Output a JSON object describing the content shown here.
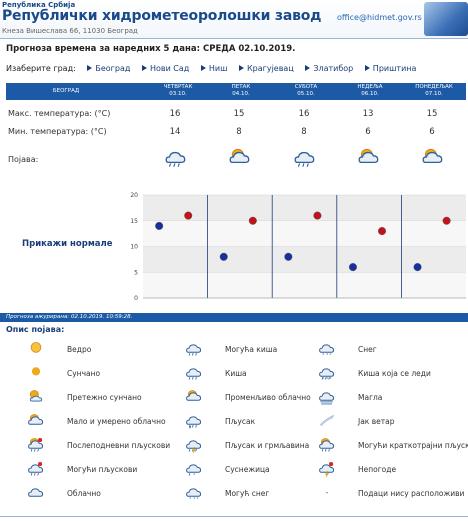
{
  "header": {
    "republic": "Република Србија",
    "title": "Републички хидрометеоролошки завод",
    "address": "Кнеза Вишеслава 66, 11030 Београд",
    "email": "office@hidmet.gov.rs"
  },
  "forecast_title": "Прогноза времена за наредних 5 дана: СРЕДА  02.10.2019.",
  "city_select": {
    "label": "Изаберите град:",
    "cities": [
      "Београд",
      "Нови Сад",
      "Ниш",
      "Крагујевац",
      "Златибор",
      "Приштина"
    ]
  },
  "table": {
    "city_header": "БЕОГРАД",
    "days": [
      {
        "name": "ЧЕТВРТАК",
        "date": "03.10.",
        "max": "16",
        "min": "14",
        "icon": "rain-icon"
      },
      {
        "name": "ПЕТАК",
        "date": "04.10.",
        "max": "15",
        "min": "8",
        "icon": "partly-cloudy-icon"
      },
      {
        "name": "СУБОТА",
        "date": "05.10.",
        "max": "16",
        "min": "8",
        "icon": "rain-icon"
      },
      {
        "name": "НЕДЕЉА",
        "date": "06.10.",
        "max": "13",
        "min": "6",
        "icon": "partly-cloudy-icon"
      },
      {
        "name": "ПОНЕДЕЉАК",
        "date": "07.10.",
        "max": "15",
        "min": "6",
        "icon": "partly-cloudy-icon"
      }
    ],
    "max_label": "Макс. температура: (°C)",
    "min_label": "Мин. температура: (°C)",
    "phen_label": "Појава:"
  },
  "chart_data": {
    "type": "scatter",
    "x": [
      "03.10.",
      "04.10.",
      "05.10.",
      "06.10.",
      "07.10."
    ],
    "series": [
      {
        "values": [
          16,
          15,
          16,
          13,
          15
        ],
        "color": "#c0141c"
      },
      {
        "values": [
          14,
          8,
          8,
          6,
          6
        ],
        "color": "#1a2f9e"
      }
    ],
    "ylim": [
      0,
      20
    ],
    "yticks": [
      "0",
      "5",
      "10",
      "15",
      "20"
    ],
    "grid": true
  },
  "show_normals": "Прикажи нормале",
  "updated": "Прогноза ажурирана:  02.10.2019. 10:59:28.",
  "description": {
    "title": "Опис појава:",
    "items": [
      {
        "label": "Ведро",
        "icon": "clear-sun-icon"
      },
      {
        "label": "Сунчано",
        "icon": "sunny-icon"
      },
      {
        "label": "Претежно сунчано",
        "icon": "mostly-sunny-icon"
      },
      {
        "label": "Мало и умерено облачно",
        "icon": "partly-cloudy-icon"
      },
      {
        "label": "Послеподневни пљускови",
        "icon": "afternoon-showers-icon"
      },
      {
        "label": "Могући пљускови",
        "icon": "possible-showers-icon"
      },
      {
        "label": "Облачно",
        "icon": "cloudy-icon"
      },
      {
        "label": "Могућа киша",
        "icon": "possible-rain-icon"
      },
      {
        "label": "Киша",
        "icon": "rain-icon"
      },
      {
        "label": "Променљиво облачно",
        "icon": "variable-cloudy-icon"
      },
      {
        "label": "Пљусак",
        "icon": "shower-icon"
      },
      {
        "label": "Пљусак и грмљавина",
        "icon": "thunder-shower-icon"
      },
      {
        "label": "Суснежица",
        "icon": "sleet-icon"
      },
      {
        "label": "Могућ снег",
        "icon": "possible-snow-icon"
      },
      {
        "label": "Снег",
        "icon": "snow-icon"
      },
      {
        "label": "Киша која се леди",
        "icon": "freezing-rain-icon"
      },
      {
        "label": "Магла",
        "icon": "fog-icon"
      },
      {
        "label": "Јак ветар",
        "icon": "strong-wind-icon"
      },
      {
        "label": "Могући краткотрајни пљускови",
        "icon": "brief-showers-icon"
      },
      {
        "label": "Непогоде",
        "icon": "storm-icon"
      },
      {
        "label": "Подаци нису расположиви",
        "icon": "dash-icon",
        "symbol": "-"
      }
    ]
  }
}
